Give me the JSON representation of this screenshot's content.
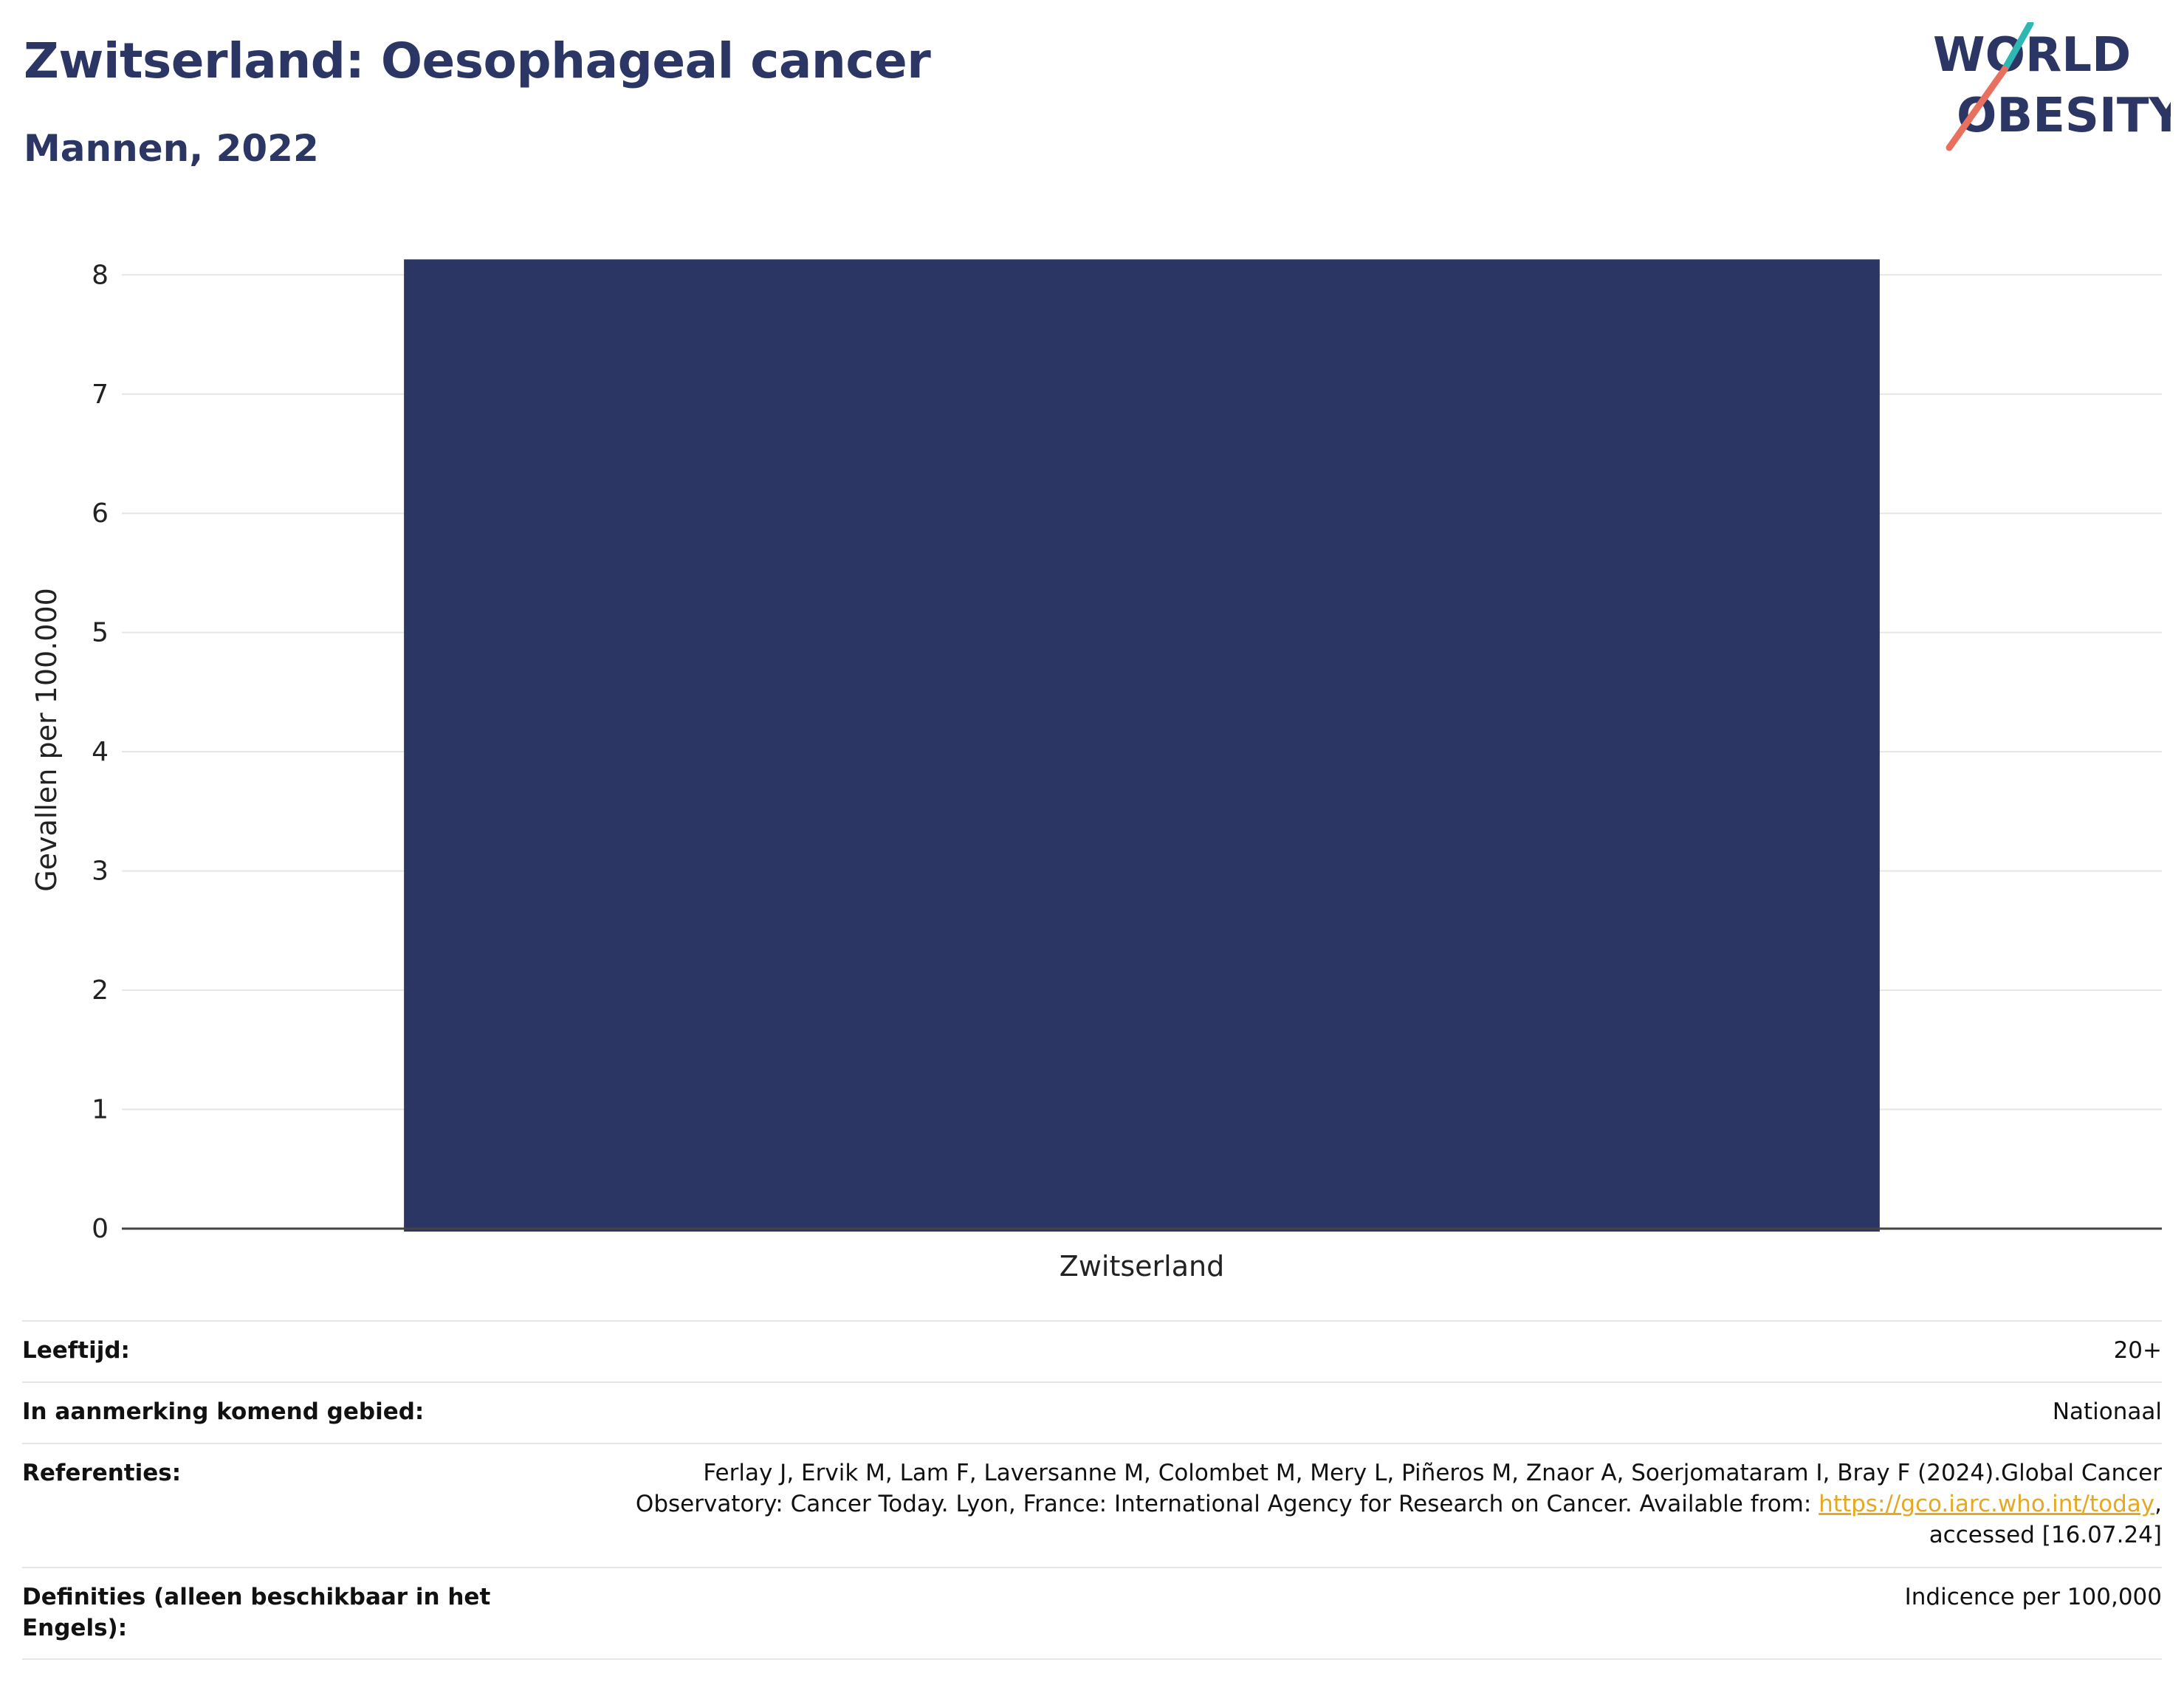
{
  "header": {
    "title": "Zwitserland: Oesophageal cancer",
    "subtitle": "Mannen, 2022"
  },
  "logo": {
    "line1": "WORLD",
    "line2": "OBESITY",
    "text_color": "#2b3664",
    "accent_teal": "#2fb8b3",
    "accent_coral": "#e8705f"
  },
  "chart_data": {
    "type": "bar",
    "categories": [
      "Zwitserland"
    ],
    "values": [
      8.13
    ],
    "xlabel": "",
    "ylabel": "Gevallen per 100.000",
    "ylim": [
      0,
      8.2
    ],
    "yticks": [
      0,
      1,
      2,
      3,
      4,
      5,
      6,
      7,
      8
    ],
    "grid": true,
    "bar_color": "#2b3664"
  },
  "info": {
    "age_label": "Leeftijd:",
    "age_value": "20+",
    "area_label": "In aanmerking komend gebied:",
    "area_value": "Nationaal",
    "ref_label": "Referenties:",
    "ref_text_1": "Ferlay J, Ervik M, Lam F, Laversanne M, Colombet M, Mery L, Piñeros M, Znaor A, Soerjomataram I, Bray F (2024).Global Cancer Observatory: Cancer Today. Lyon, France: International Agency for Research on Cancer. Available from: ",
    "ref_link": "https://gco.iarc.who.int/today",
    "ref_text_2": ", accessed [16.07.24]",
    "def_label": "Definities (alleen beschikbaar in het Engels):",
    "def_value": "Indicence per 100,000"
  }
}
